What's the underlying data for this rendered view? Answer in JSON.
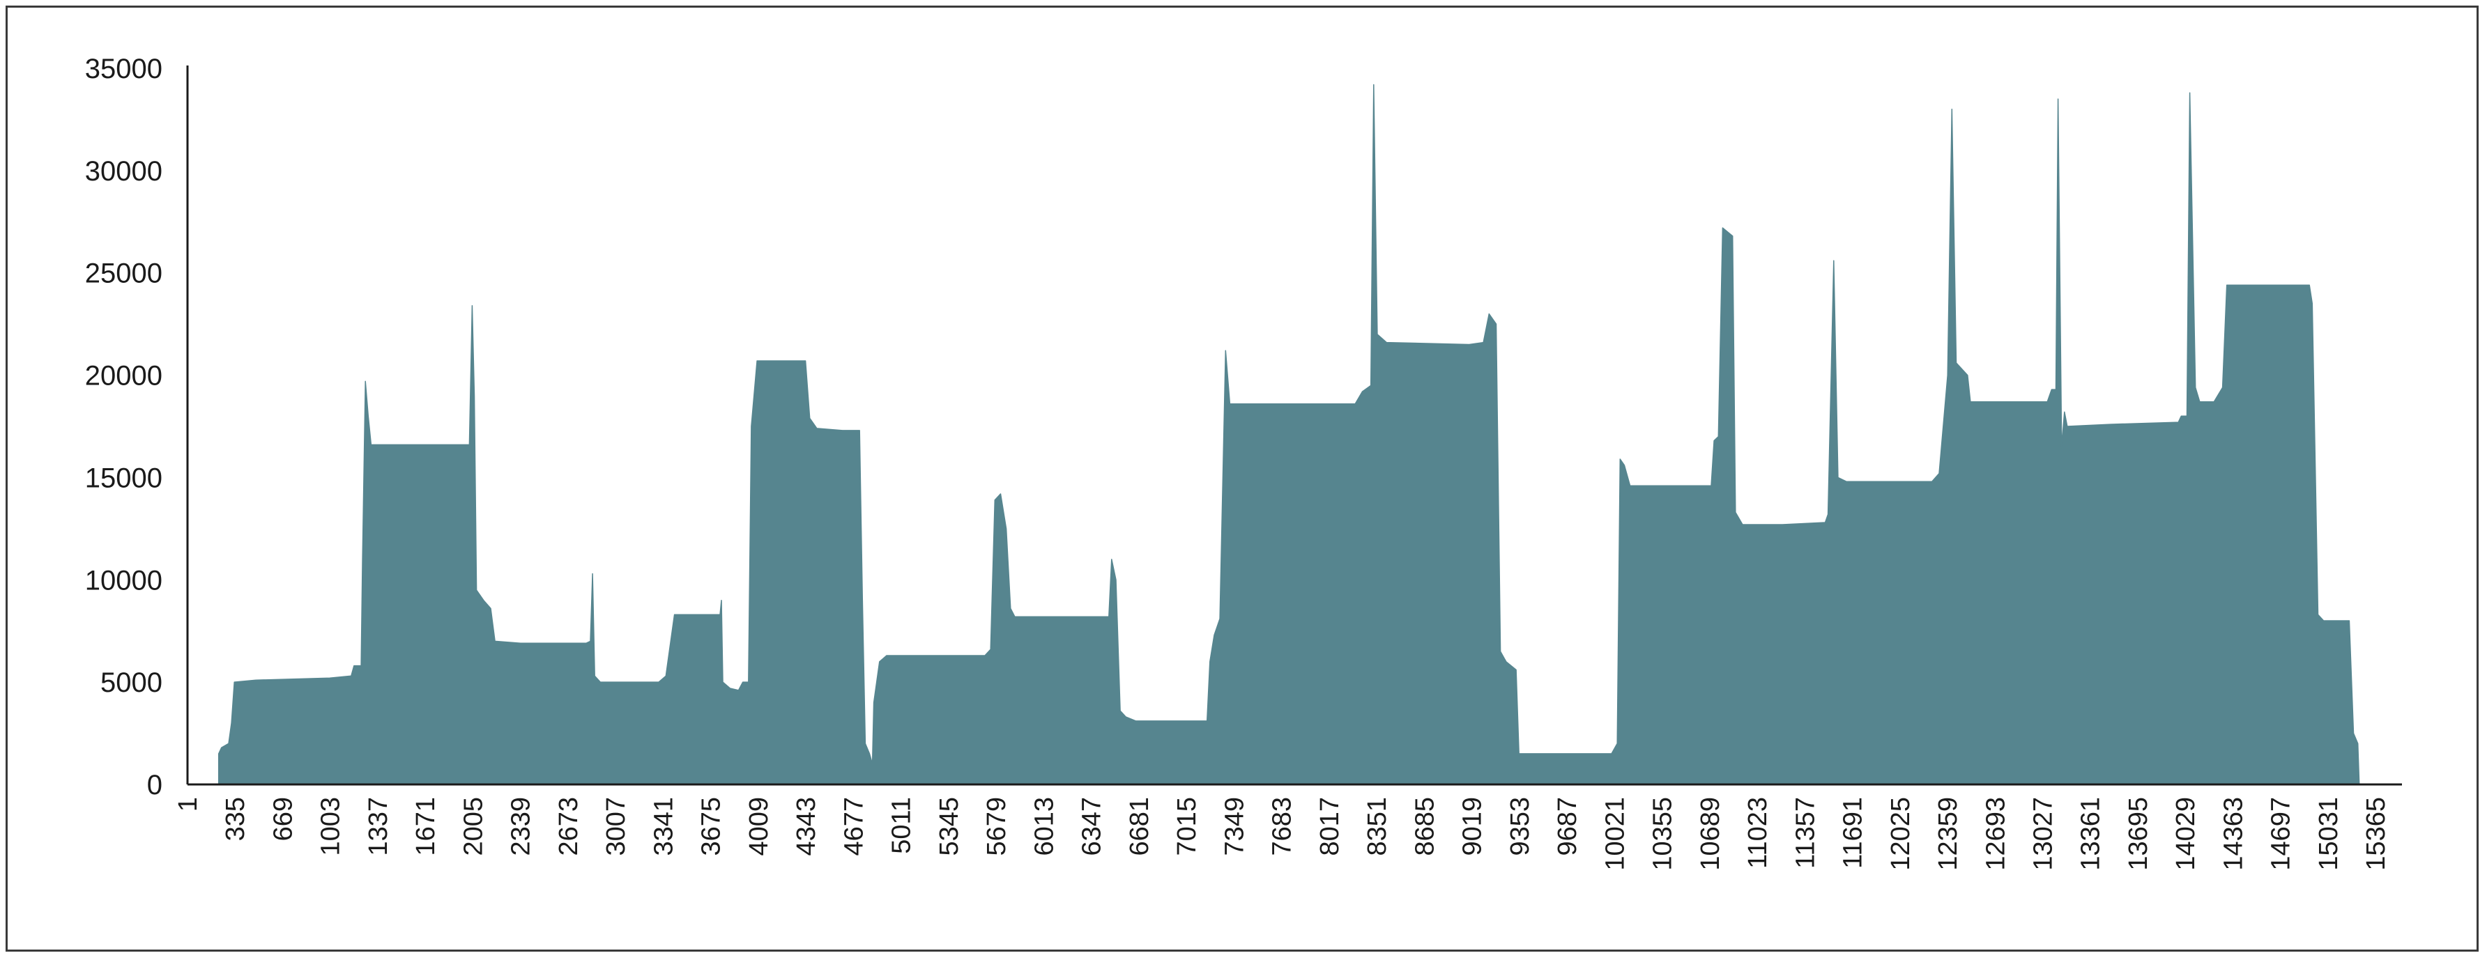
{
  "chart_data": {
    "type": "area",
    "title": "",
    "xlabel": "",
    "ylabel": "",
    "ylim": [
      0,
      35000
    ],
    "xlim": [
      1,
      15550
    ],
    "grid": false,
    "legend": "none",
    "colors": {
      "area": "#56858f",
      "axis": "#1a1a1a"
    },
    "y_ticks": [
      0,
      5000,
      10000,
      15000,
      20000,
      25000,
      30000,
      35000
    ],
    "x_ticks": [
      1,
      335,
      669,
      1003,
      1337,
      1671,
      2005,
      2339,
      2673,
      3007,
      3341,
      3675,
      4009,
      4343,
      4677,
      5011,
      5345,
      5679,
      6013,
      6347,
      6681,
      7015,
      7349,
      7683,
      8017,
      8351,
      8685,
      9019,
      9353,
      9687,
      10021,
      10355,
      10689,
      11023,
      11357,
      11691,
      12025,
      12359,
      12693,
      13027,
      13361,
      13695,
      14029,
      14363,
      14697,
      15031,
      15365
    ],
    "series": [
      {
        "points": [
          [
            220,
            0
          ],
          [
            220,
            1500
          ],
          [
            240,
            1800
          ],
          [
            290,
            2000
          ],
          [
            310,
            3000
          ],
          [
            330,
            5000
          ],
          [
            480,
            5100
          ],
          [
            1000,
            5200
          ],
          [
            1150,
            5300
          ],
          [
            1170,
            5800
          ],
          [
            1220,
            5800
          ],
          [
            1230,
            11000
          ],
          [
            1250,
            19700
          ],
          [
            1270,
            18000
          ],
          [
            1290,
            16600
          ],
          [
            1700,
            16600
          ],
          [
            1980,
            16600
          ],
          [
            1990,
            20000
          ],
          [
            2000,
            23400
          ],
          [
            2015,
            19000
          ],
          [
            2030,
            9500
          ],
          [
            2080,
            9000
          ],
          [
            2130,
            8600
          ],
          [
            2160,
            7000
          ],
          [
            2340,
            6900
          ],
          [
            2800,
            6900
          ],
          [
            2830,
            7000
          ],
          [
            2845,
            10300
          ],
          [
            2860,
            5300
          ],
          [
            2900,
            5000
          ],
          [
            3100,
            5000
          ],
          [
            3310,
            5000
          ],
          [
            3360,
            5300
          ],
          [
            3420,
            8300
          ],
          [
            3600,
            8300
          ],
          [
            3740,
            8300
          ],
          [
            3750,
            9000
          ],
          [
            3760,
            5000
          ],
          [
            3810,
            4700
          ],
          [
            3870,
            4600
          ],
          [
            3900,
            5000
          ],
          [
            3940,
            5000
          ],
          [
            3960,
            17500
          ],
          [
            4000,
            20700
          ],
          [
            4100,
            20700
          ],
          [
            4340,
            20700
          ],
          [
            4370,
            17900
          ],
          [
            4420,
            17400
          ],
          [
            4600,
            17300
          ],
          [
            4720,
            17300
          ],
          [
            4740,
            9000
          ],
          [
            4760,
            2000
          ],
          [
            4790,
            1500
          ],
          [
            4810,
            1000
          ],
          [
            4820,
            4000
          ],
          [
            4860,
            6000
          ],
          [
            4910,
            6300
          ],
          [
            5300,
            6300
          ],
          [
            5600,
            6300
          ],
          [
            5640,
            6600
          ],
          [
            5670,
            13900
          ],
          [
            5710,
            14200
          ],
          [
            5750,
            12500
          ],
          [
            5780,
            8600
          ],
          [
            5810,
            8200
          ],
          [
            6300,
            8200
          ],
          [
            6470,
            8200
          ],
          [
            6490,
            11000
          ],
          [
            6520,
            10000
          ],
          [
            6550,
            3600
          ],
          [
            6590,
            3300
          ],
          [
            6660,
            3100
          ],
          [
            7000,
            3100
          ],
          [
            7160,
            3100
          ],
          [
            7180,
            6000
          ],
          [
            7210,
            7300
          ],
          [
            7250,
            8100
          ],
          [
            7290,
            21200
          ],
          [
            7320,
            18600
          ],
          [
            7500,
            18600
          ],
          [
            8200,
            18600
          ],
          [
            8250,
            19200
          ],
          [
            8310,
            19500
          ],
          [
            8330,
            34200
          ],
          [
            8355,
            22000
          ],
          [
            8420,
            21600
          ],
          [
            9000,
            21500
          ],
          [
            9100,
            21600
          ],
          [
            9140,
            23000
          ],
          [
            9190,
            22500
          ],
          [
            9220,
            6500
          ],
          [
            9260,
            6000
          ],
          [
            9330,
            5600
          ],
          [
            9350,
            1500
          ],
          [
            9500,
            1500
          ],
          [
            10000,
            1500
          ],
          [
            10040,
            2000
          ],
          [
            10060,
            15900
          ],
          [
            10090,
            15600
          ],
          [
            10130,
            14600
          ],
          [
            10700,
            14600
          ],
          [
            10720,
            16800
          ],
          [
            10750,
            17000
          ],
          [
            10780,
            27200
          ],
          [
            10850,
            26800
          ],
          [
            10870,
            13300
          ],
          [
            10920,
            12700
          ],
          [
            11200,
            12700
          ],
          [
            11500,
            12800
          ],
          [
            11520,
            13200
          ],
          [
            11560,
            25600
          ],
          [
            11590,
            15000
          ],
          [
            11650,
            14800
          ],
          [
            12000,
            14800
          ],
          [
            12250,
            14800
          ],
          [
            12300,
            15200
          ],
          [
            12360,
            20000
          ],
          [
            12390,
            33000
          ],
          [
            12420,
            20600
          ],
          [
            12500,
            20000
          ],
          [
            12520,
            18700
          ],
          [
            12800,
            18700
          ],
          [
            13060,
            18700
          ],
          [
            13090,
            19300
          ],
          [
            13120,
            19300
          ],
          [
            13135,
            33500
          ],
          [
            13160,
            16500
          ],
          [
            13180,
            18200
          ],
          [
            13200,
            17500
          ],
          [
            13500,
            17600
          ],
          [
            13980,
            17700
          ],
          [
            14000,
            18000
          ],
          [
            14040,
            18000
          ],
          [
            14060,
            33800
          ],
          [
            14100,
            19400
          ],
          [
            14130,
            18700
          ],
          [
            14230,
            18700
          ],
          [
            14290,
            19400
          ],
          [
            14320,
            24400
          ],
          [
            14700,
            24400
          ],
          [
            14900,
            24400
          ],
          [
            14920,
            23500
          ],
          [
            14960,
            8300
          ],
          [
            15000,
            8000
          ],
          [
            15180,
            8000
          ],
          [
            15210,
            2500
          ],
          [
            15240,
            2000
          ],
          [
            15250,
            0
          ]
        ]
      }
    ]
  }
}
